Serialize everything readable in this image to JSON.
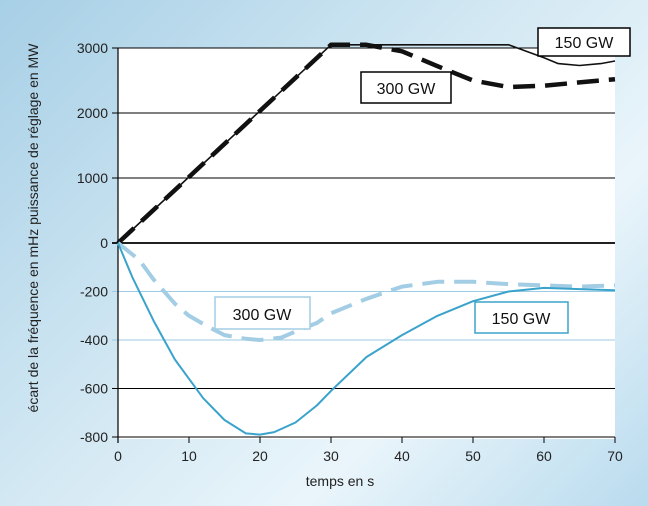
{
  "chart_data": [
    {
      "type": "line",
      "title": "",
      "ylabel": "puissance de réglage en MW",
      "xlim": [
        0,
        70
      ],
      "ylim": [
        0,
        3000
      ],
      "yticks": [
        0,
        1000,
        2000,
        3000
      ],
      "series": [
        {
          "name": "150 GW",
          "color": "#111111",
          "style": "solid",
          "x": [
            0,
            30,
            55,
            60,
            62,
            65,
            68,
            70
          ],
          "y": [
            0,
            3050,
            3050,
            2850,
            2760,
            2730,
            2760,
            2800
          ]
        },
        {
          "name": "300 GW",
          "color": "#111111",
          "style": "dashed",
          "x": [
            0,
            30,
            35,
            40,
            45,
            50,
            55,
            60,
            65,
            70
          ],
          "y": [
            0,
            3050,
            3050,
            2950,
            2720,
            2500,
            2400,
            2420,
            2470,
            2520
          ]
        }
      ]
    },
    {
      "type": "line",
      "title": "",
      "ylabel": "écart de la fréquence en mHz",
      "xlabel": "temps en s",
      "xlim": [
        0,
        70
      ],
      "ylim": [
        -800,
        0
      ],
      "yticks": [
        -800,
        -600,
        -400,
        -200
      ],
      "xticks": [
        0,
        10,
        20,
        30,
        40,
        50,
        60,
        70
      ],
      "series": [
        {
          "name": "150 GW",
          "color": "#3aa3cc",
          "style": "solid",
          "x": [
            0,
            2,
            5,
            8,
            10,
            12,
            15,
            18,
            20,
            22,
            25,
            28,
            30,
            35,
            40,
            45,
            50,
            55,
            60,
            65,
            70
          ],
          "y": [
            0,
            -140,
            -320,
            -480,
            -560,
            -640,
            -730,
            -785,
            -790,
            -780,
            -740,
            -670,
            -610,
            -470,
            -380,
            -300,
            -240,
            -200,
            -185,
            -190,
            -195
          ]
        },
        {
          "name": "300 GW",
          "color": "#a2cde4",
          "style": "dashed",
          "x": [
            0,
            3,
            5,
            8,
            10,
            13,
            15,
            18,
            20,
            23,
            25,
            28,
            30,
            35,
            40,
            45,
            50,
            55,
            60,
            65,
            70
          ],
          "y": [
            0,
            -70,
            -150,
            -250,
            -300,
            -350,
            -380,
            -395,
            -400,
            -390,
            -365,
            -330,
            -290,
            -230,
            -180,
            -160,
            -160,
            -170,
            -175,
            -180,
            -175
          ]
        }
      ]
    }
  ],
  "xlabel": "temps en s",
  "ylabel_combined": "écart de la fréquence en mHz puissance de réglage en MW",
  "labels": {
    "top_150": "150 GW",
    "top_300": "300 GW",
    "bottom_300": "300 GW",
    "bottom_150": "150 GW"
  },
  "colors": {
    "background": "#cfe6f2",
    "plot_bg": "#ffffff",
    "grid": "#000000",
    "blue_light": "#a2cde4",
    "blue_solid": "#3aa3cc"
  }
}
